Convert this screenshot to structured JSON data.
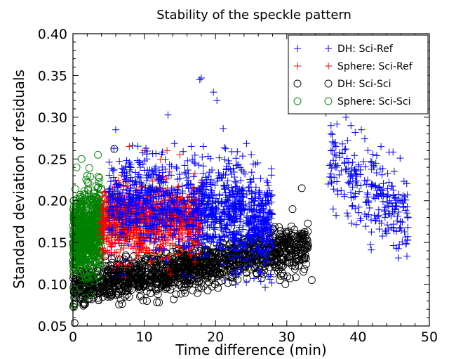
{
  "chart_data": {
    "type": "scatter",
    "title": "Stability of the speckle pattern",
    "xlabel": "Time difference (min)",
    "ylabel": "Standard deviation of residuals",
    "xlim": [
      0,
      50
    ],
    "ylim": [
      0.05,
      0.4
    ],
    "xticks": [
      "0",
      "10",
      "20",
      "30",
      "40",
      "50"
    ],
    "yticks": [
      "0.05",
      "0.10",
      "0.15",
      "0.20",
      "0.25",
      "0.30",
      "0.35",
      "0.40"
    ],
    "grid": false,
    "legend_position": "top-right",
    "series": [
      {
        "name": "DH: Sci-Sci",
        "marker": "circle",
        "color": "#000000",
        "clusters": [
          {
            "x_range": [
              0,
              20
            ],
            "y_center_start": 0.095,
            "y_center_end": 0.125,
            "spread": 0.012,
            "count": 900
          },
          {
            "x_range": [
              20,
              33
            ],
            "y_center_start": 0.125,
            "y_center_end": 0.145,
            "spread": 0.013,
            "count": 500
          }
        ],
        "points": [
          [
            0.3,
            0.085
          ],
          [
            5.8,
            0.262
          ],
          [
            29.8,
            0.1
          ],
          [
            32.1,
            0.215
          ],
          [
            33.5,
            0.105
          ],
          [
            30.8,
            0.19
          ]
        ]
      },
      {
        "name": "Sphere: Sci-Sci",
        "marker": "circle",
        "color": "#008000",
        "clusters": [
          {
            "x_range": [
              0,
              4
            ],
            "y_center_start": 0.155,
            "y_center_end": 0.165,
            "spread": 0.025,
            "count": 700
          }
        ],
        "points": [
          [
            1.2,
            0.25
          ],
          [
            0.5,
            0.24
          ],
          [
            3.5,
            0.255
          ],
          [
            2.0,
            0.23
          ]
        ]
      },
      {
        "name": "Sphere: Sci-Ref",
        "marker": "plus",
        "color": "#ff0000",
        "clusters": [
          {
            "x_range": [
              4,
              18
            ],
            "y_center_start": 0.175,
            "y_center_end": 0.18,
            "spread": 0.02,
            "count": 1000
          }
        ],
        "points": [
          [
            7.9,
            0.265
          ],
          [
            10.0,
            0.26
          ],
          [
            13.2,
            0.26
          ],
          [
            15.0,
            0.255
          ]
        ]
      },
      {
        "name": "DH: Sci-Ref",
        "marker": "plus",
        "color": "#0000ff",
        "clusters": [
          {
            "x_range": [
              5,
              18
            ],
            "y_center_start": 0.2,
            "y_center_end": 0.195,
            "spread": 0.028,
            "count": 600
          },
          {
            "x_range": [
              18,
              28
            ],
            "y_center_start": 0.195,
            "y_center_end": 0.17,
            "spread": 0.03,
            "count": 700
          },
          {
            "x_range": [
              36,
              47
            ],
            "y_center_start": 0.25,
            "y_center_end": 0.175,
            "spread": 0.025,
            "count": 260
          }
        ],
        "points": [
          [
            18.0,
            0.347
          ],
          [
            17.8,
            0.345
          ],
          [
            19.7,
            0.33
          ],
          [
            20.2,
            0.32
          ],
          [
            6.0,
            0.285
          ],
          [
            35.5,
            0.305
          ],
          [
            37.0,
            0.31
          ],
          [
            38.3,
            0.3
          ],
          [
            39.0,
            0.29
          ],
          [
            36.2,
            0.29
          ],
          [
            36.5,
            0.19
          ],
          [
            35.8,
            0.22
          ]
        ]
      }
    ],
    "legend": [
      {
        "label": "DH: Sci-Ref",
        "marker": "plus",
        "color": "#0000ff"
      },
      {
        "label": "Sphere: Sci-Ref",
        "marker": "plus",
        "color": "#ff0000"
      },
      {
        "label": "DH: Sci-Sci",
        "marker": "circle",
        "color": "#000000"
      },
      {
        "label": "Sphere: Sci-Sci",
        "marker": "circle",
        "color": "#008000"
      }
    ]
  }
}
